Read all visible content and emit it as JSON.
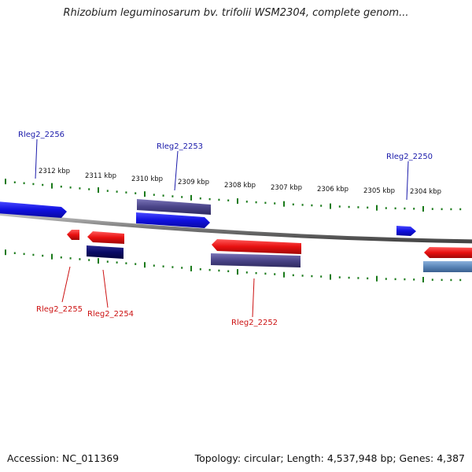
{
  "title": "Rhizobium leguminosarum bv. trifolii WSM2304, complete genom...",
  "footer": {
    "accession": "Accession: NC_011369",
    "summary": "Topology: circular; Length: 4,537,948 bp; Genes: 4,387"
  },
  "colors": {
    "forward_gene": "#1010e0",
    "reverse_gene": "#e01010",
    "forward_cds_dark": "#4a4488",
    "reverse_cds_dark": "#4a4488",
    "navy": "#0a0a66",
    "steel": "#5a86b8",
    "tick": "#1a7a1a",
    "backbone": "#888888",
    "forward_label": "#1a1aaa",
    "reverse_label": "#cc1111"
  },
  "scale": {
    "tick_labels": [
      "2312 kbp",
      "2311 kbp",
      "2310 kbp",
      "2309 kbp",
      "2308 kbp",
      "2307 kbp",
      "2306 kbp",
      "2305 kbp",
      "2304 kbp"
    ]
  },
  "genes": {
    "forward": [
      "Rleg2_2256",
      "Rleg2_2253",
      "Rleg2_2250"
    ],
    "reverse": [
      "Rleg2_2255",
      "Rleg2_2254",
      "Rleg2_2252"
    ]
  }
}
